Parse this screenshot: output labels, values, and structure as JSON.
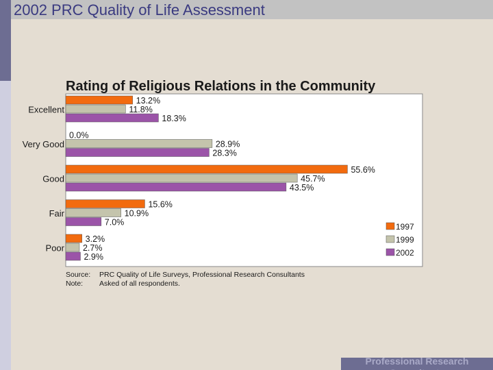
{
  "slide": {
    "title": "2002 PRC Quality of Life Assessment",
    "footer": "Professional Research Consultants"
  },
  "colors": {
    "1997": "#f26b0f",
    "1999": "#c4c4ac",
    "2002": "#9b54a8"
  },
  "chart_data": {
    "type": "bar",
    "orientation": "horizontal",
    "title": "Rating of Religious Relations in the Community",
    "categories": [
      "Excellent",
      "Very Good",
      "Good",
      "Fair",
      "Poor"
    ],
    "series": [
      {
        "name": "1997",
        "values": [
          13.2,
          0.0,
          55.6,
          15.6,
          3.2
        ],
        "labels": [
          "13.2%",
          "0.0%",
          "55.6%",
          "15.6%",
          "3.2%"
        ]
      },
      {
        "name": "1999",
        "values": [
          11.8,
          28.9,
          45.7,
          10.9,
          2.7
        ],
        "labels": [
          "11.8%",
          "28.9%",
          "45.7%",
          "10.9%",
          "2.7%"
        ]
      },
      {
        "name": "2002",
        "values": [
          18.3,
          28.3,
          43.5,
          7.0,
          2.9
        ],
        "labels": [
          "18.3%",
          "28.3%",
          "43.5%",
          "7.0%",
          "2.9%"
        ]
      }
    ],
    "xlim": [
      0,
      60
    ],
    "legend": "bottom-right",
    "source_label": "Source:",
    "source_text": "PRC Quality of Life Surveys, Professional Research Consultants",
    "note_label": "Note:",
    "note_text": "Asked of all respondents."
  }
}
